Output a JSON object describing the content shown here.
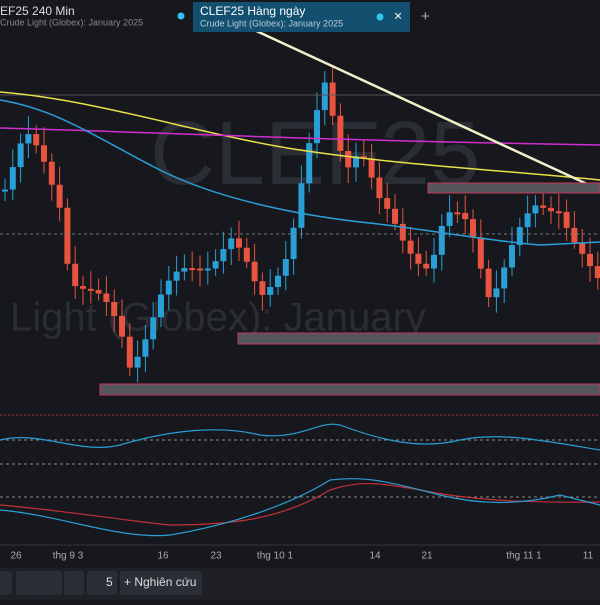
{
  "header": {
    "symbol_title": "EF25 240 Min",
    "symbol_subtitle": "Crude Light (Globex): January 2025"
  },
  "tab": {
    "title": "CLEF25 Hàng ngày",
    "subtitle": "Crude Light (Globex): January 2025",
    "close": "×",
    "add": "+"
  },
  "watermark": {
    "line1": "CLEF25",
    "line2": "Light (Globex): January"
  },
  "x_axis": {
    "labels": [
      "26",
      "thg 9 3",
      "16",
      "23",
      "thg 10 1",
      "14",
      "21",
      "thg 11 1",
      "11"
    ]
  },
  "toolbar": {
    "count": "5",
    "studies": "+ Nghiên cứu"
  }
}
